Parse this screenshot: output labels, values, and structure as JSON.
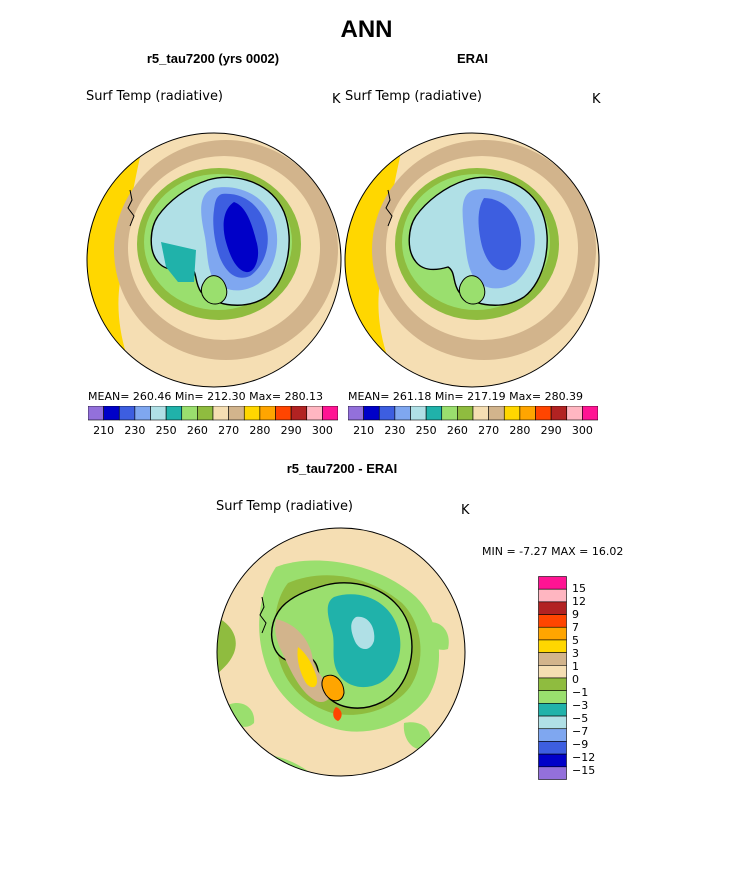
{
  "title": "ANN",
  "panels": [
    {
      "subtitle": "r5_tau7200 (yrs 0002)",
      "variable": "Surf Temp (radiative)",
      "units": "K",
      "stats": "MEAN= 260.46   Min= 212.30   Max= 280.13"
    },
    {
      "subtitle": "ERAI",
      "variable": "Surf Temp (radiative)",
      "units": "K",
      "stats": "MEAN= 261.18   Min= 217.19   Max= 280.39"
    }
  ],
  "colorbar": {
    "ticks": [
      "210",
      "230",
      "250",
      "260",
      "270",
      "280",
      "290",
      "300"
    ],
    "colors": [
      "#9370db",
      "#0000c8",
      "#3d5ee0",
      "#7fa7f0",
      "#b0e0e6",
      "#20b2aa",
      "#9adf6e",
      "#8fbc3f",
      "#f5deb3",
      "#d2b48c",
      "#ffd700",
      "#ffa500",
      "#ff4500",
      "#b22222",
      "#ffb6c1",
      "#ff1493"
    ]
  },
  "diff_panel": {
    "subtitle": "r5_tau7200 - ERAI",
    "variable": "Surf Temp (radiative)",
    "units": "K",
    "minmax": "MIN =   -7.27 MAX =   16.02",
    "levels": [
      "15",
      "12",
      "9",
      "7",
      "5",
      "3",
      "1",
      "0",
      "−1",
      "−3",
      "−5",
      "−7",
      "−9",
      "−12",
      "−15"
    ],
    "colors": [
      "#ff1493",
      "#ffb6c1",
      "#b22222",
      "#ff4500",
      "#ffa500",
      "#ffd700",
      "#d2b48c",
      "#f5deb3",
      "#8fbc3f",
      "#9adf6e",
      "#20b2aa",
      "#b0e0e6",
      "#7fa7f0",
      "#3d5ee0",
      "#0000c8",
      "#9370db"
    ]
  }
}
